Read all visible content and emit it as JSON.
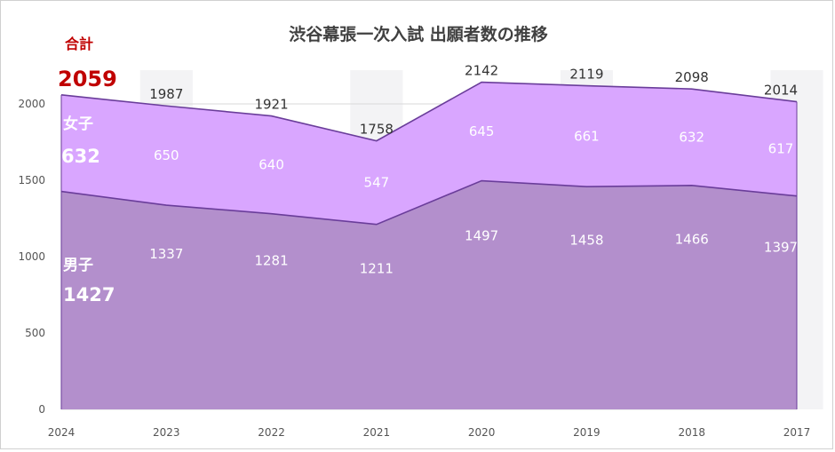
{
  "chart_data": {
    "type": "area",
    "title": "渋谷幕張一次入試 出願者数の推移",
    "categories": [
      "2024",
      "2023",
      "2022",
      "2021",
      "2020",
      "2019",
      "2018",
      "2017"
    ],
    "series": [
      {
        "name": "男子",
        "values": [
          1427,
          1337,
          1281,
          1211,
          1497,
          1458,
          1466,
          1397
        ],
        "color": "#b38fcc",
        "line_color": "#6a3d9a"
      },
      {
        "name": "女子",
        "values": [
          632,
          650,
          640,
          547,
          645,
          661,
          632,
          617
        ],
        "color": "#d9a6ff",
        "line_color": "#6a3d9a"
      }
    ],
    "totals_name": "合計",
    "totals": [
      2059,
      1987,
      1921,
      1758,
      2142,
      2119,
      2098,
      2014
    ],
    "yticks": [
      "0",
      "500",
      "1000",
      "1500",
      "2000"
    ],
    "ylim": [
      0,
      2300
    ],
    "grid": true,
    "band_color": "#f3f3f5",
    "legend_callouts": {
      "total_name": "合計",
      "total_value": "2059",
      "female_name": "女子",
      "female_value": "632",
      "male_name": "男子",
      "male_value": "1427"
    }
  }
}
